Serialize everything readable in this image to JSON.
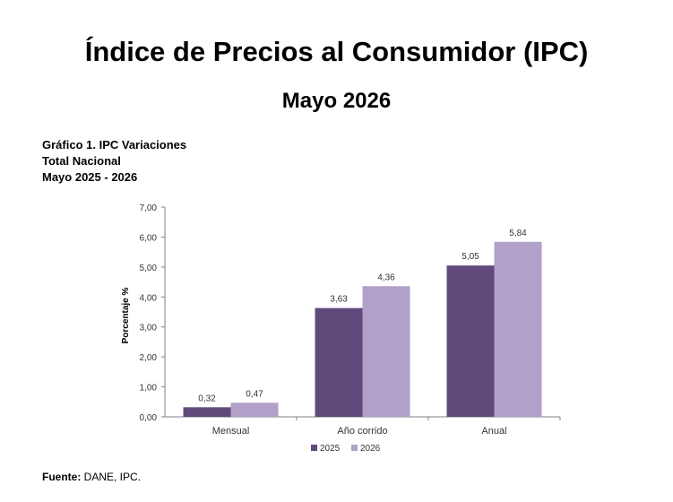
{
  "header": {
    "title": "Índice de Precios al Consumidor (IPC)",
    "subtitle": "Mayo 2026"
  },
  "caption": {
    "line1": "Gráfico 1. IPC Variaciones",
    "line2": "Total Nacional",
    "line3": "Mayo 2025 - 2026"
  },
  "footer": {
    "source_label": "Fuente:",
    "source_text": " DANE, IPC."
  },
  "chart_data": {
    "type": "bar",
    "categories": [
      "Mensual",
      "Año corrido",
      "Anual"
    ],
    "series": [
      {
        "name": "2025",
        "values": [
          0.32,
          3.63,
          5.05
        ],
        "labels": [
          "0,32",
          "3,63",
          "5,05"
        ],
        "color": "#604a7b"
      },
      {
        "name": "2026",
        "values": [
          0.47,
          4.36,
          5.84
        ],
        "labels": [
          "0,47",
          "4,36",
          "5,84"
        ],
        "color": "#b1a0c7"
      }
    ],
    "ylabel": "Porcentaje %",
    "xlabel": "",
    "ylim": [
      0,
      7
    ],
    "yticks": [
      0,
      1,
      2,
      3,
      4,
      5,
      6,
      7
    ],
    "ytick_labels": [
      "0,00",
      "1,00",
      "2,00",
      "3,00",
      "4,00",
      "5,00",
      "6,00",
      "7,00"
    ],
    "grid": false,
    "legend_position": "bottom-center"
  }
}
